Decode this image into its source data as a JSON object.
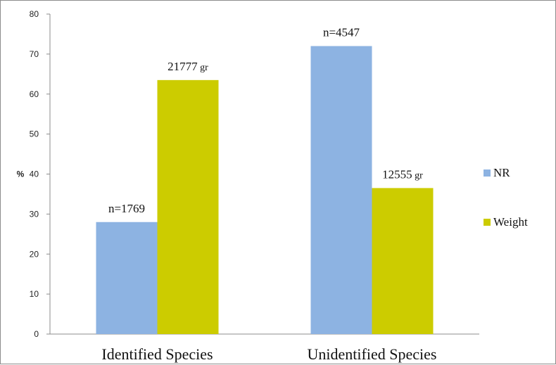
{
  "chart_data": {
    "type": "bar",
    "categories": [
      "Identified Species",
      "Unidentified Species"
    ],
    "series": [
      {
        "name": "NR",
        "values": [
          28,
          72
        ],
        "color": "#8db3e2",
        "labels": [
          {
            "main": "n=1769",
            "unit": ""
          },
          {
            "main": "n=4547",
            "unit": ""
          }
        ]
      },
      {
        "name": "Weight",
        "values": [
          63.5,
          36.5
        ],
        "color": "#cccc00",
        "labels": [
          {
            "main": "21777",
            "unit": "gr"
          },
          {
            "main": "12555",
            "unit": "gr"
          }
        ]
      }
    ],
    "ylabel": "%",
    "ylim": [
      0,
      80
    ],
    "yticks": [
      0,
      10,
      20,
      30,
      40,
      50,
      60,
      70,
      80
    ],
    "grid": false,
    "legend_position": "right"
  }
}
